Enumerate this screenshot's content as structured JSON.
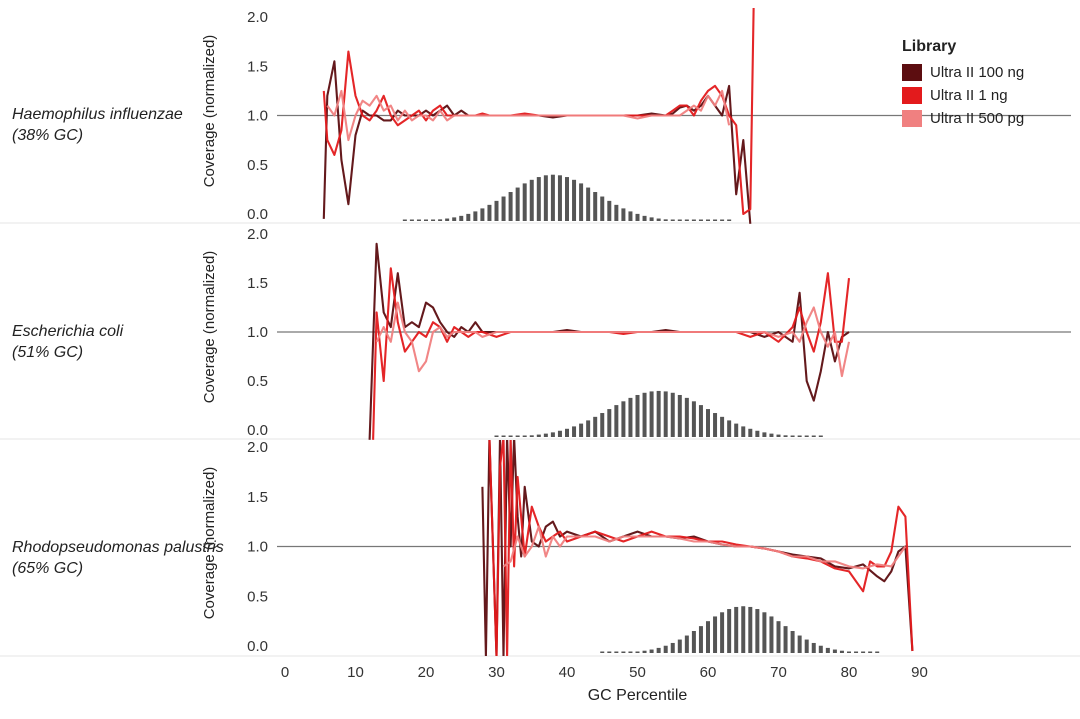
{
  "panels": [
    {
      "organism_name": "Haemophilus influenzae",
      "organism_gc": "(38% GC)"
    },
    {
      "organism_name": "Escherichia coli",
      "organism_gc": "(51% GC)"
    },
    {
      "organism_name": "Rhodopseudomonas palustris",
      "organism_gc": "(65% GC)"
    }
  ],
  "legend": {
    "title": "Library",
    "items": [
      {
        "label": "Ultra II 100 ng",
        "color": "#5c0d10"
      },
      {
        "label": "Ultra II 1 ng",
        "color": "#e31a1c"
      },
      {
        "label": "Ultra II 500 pg",
        "color": "#f08080"
      }
    ]
  },
  "chart_data": {
    "type": "line",
    "xlabel": "GC Percentile",
    "ylabel": "Coverage (normalized)",
    "xlim": [
      0,
      95
    ],
    "ylim": [
      0,
      2
    ],
    "x_ticks": [
      0,
      10,
      20,
      30,
      40,
      50,
      60,
      70,
      80,
      90
    ],
    "y_ticks": [
      "0.0",
      "0.5",
      "1.0",
      "1.5",
      "2.0"
    ],
    "reference_line": 1.0,
    "histogram_color": "#555555",
    "panels": [
      {
        "organism": "Haemophilus influenzae (38% GC)",
        "histogram": {
          "center": 38,
          "sigma": 6.2,
          "peak": 0.47,
          "x_range": [
            17,
            63
          ]
        },
        "series": [
          {
            "name": "Ultra II 100 ng",
            "color": "#5c0d10",
            "x": [
              5.5,
              6,
              7,
              8,
              9,
              10,
              11,
              12,
              13,
              14,
              15,
              16,
              17,
              18,
              19,
              20,
              21,
              22,
              23,
              24,
              25,
              26,
              27,
              28,
              29,
              30,
              32,
              34,
              36,
              38,
              40,
              42,
              44,
              46,
              48,
              50,
              52,
              54,
              55,
              56,
              57,
              58,
              59,
              60,
              61,
              62,
              63,
              64,
              65,
              66
            ],
            "y": [
              -0.05,
              1.2,
              1.55,
              0.55,
              0.1,
              0.8,
              1.05,
              1.0,
              1.0,
              0.95,
              0.95,
              1.05,
              1.0,
              1.0,
              1.0,
              1.05,
              1.0,
              1.05,
              1.1,
              1.0,
              1.05,
              1.0,
              1.0,
              1.0,
              1.0,
              1.0,
              1.0,
              1.0,
              1.0,
              0.98,
              1.0,
              1.0,
              1.0,
              1.0,
              1.0,
              1.0,
              1.02,
              1.0,
              1.02,
              1.08,
              1.1,
              1.05,
              1.1,
              1.2,
              1.1,
              1.0,
              1.3,
              0.2,
              0.75,
              -0.1
            ]
          },
          {
            "name": "Ultra II 1 ng",
            "color": "#e31a1c",
            "x": [
              5.5,
              6,
              7,
              8,
              9,
              10,
              11,
              12,
              13,
              14,
              15,
              16,
              17,
              18,
              19,
              20,
              21,
              22,
              23,
              24,
              25,
              26,
              27,
              28,
              29,
              30,
              32,
              34,
              36,
              38,
              40,
              42,
              44,
              46,
              48,
              50,
              52,
              54,
              55,
              56,
              57,
              58,
              59,
              60,
              61,
              62,
              63,
              64,
              65,
              66,
              66.5
            ],
            "y": [
              1.25,
              0.75,
              0.6,
              0.85,
              1.65,
              1.2,
              1.0,
              0.95,
              1.05,
              1.2,
              1.0,
              0.9,
              0.95,
              1.0,
              1.05,
              0.95,
              1.05,
              1.1,
              1.0,
              1.0,
              1.0,
              1.0,
              1.0,
              1.02,
              1.0,
              1.0,
              1.0,
              1.02,
              1.0,
              1.0,
              1.0,
              1.0,
              1.0,
              1.0,
              1.0,
              1.0,
              1.0,
              1.0,
              1.05,
              1.1,
              1.1,
              1.0,
              1.15,
              1.25,
              1.3,
              1.2,
              1.0,
              0.9,
              0.0,
              0.05,
              2.2
            ]
          },
          {
            "name": "Ultra II 500 pg",
            "color": "#f08080",
            "x": [
              6,
              7,
              8,
              9,
              10,
              11,
              12,
              13,
              14,
              15,
              16,
              17,
              18,
              19,
              20,
              21,
              22,
              23,
              24,
              25,
              26,
              27,
              28,
              29,
              30,
              32,
              34,
              36,
              38,
              40,
              42,
              44,
              46,
              48,
              50,
              52,
              54,
              55,
              56,
              57,
              58,
              59,
              60,
              61,
              62,
              63
            ],
            "y": [
              1.1,
              1.0,
              1.25,
              0.75,
              1.0,
              1.15,
              1.1,
              1.2,
              1.05,
              1.1,
              0.95,
              1.05,
              0.95,
              1.0,
              1.0,
              0.95,
              1.05,
              0.95,
              1.0,
              1.0,
              1.0,
              1.0,
              1.0,
              1.0,
              1.0,
              1.0,
              1.0,
              1.0,
              1.0,
              1.0,
              1.0,
              1.0,
              1.0,
              1.0,
              0.97,
              1.0,
              1.0,
              1.0,
              1.0,
              1.05,
              1.1,
              1.05,
              1.2,
              1.1,
              1.25,
              0.9
            ]
          }
        ]
      },
      {
        "organism": "Escherichia coli (51% GC)",
        "histogram": {
          "center": 53,
          "sigma": 7,
          "peak": 0.47,
          "x_range": [
            30,
            76
          ]
        },
        "series": [
          {
            "name": "Ultra II 100 ng",
            "color": "#5c0d10",
            "x": [
              12,
              13,
              14,
              15,
              16,
              17,
              18,
              19,
              20,
              21,
              22,
              23,
              24,
              25,
              26,
              27,
              28,
              30,
              32,
              34,
              36,
              38,
              40,
              42,
              44,
              46,
              48,
              50,
              52,
              54,
              56,
              58,
              60,
              62,
              64,
              66,
              68,
              70,
              72,
              73,
              74,
              75,
              76,
              77,
              78,
              79,
              80
            ],
            "y": [
              -0.1,
              1.9,
              1.2,
              1.05,
              1.6,
              1.05,
              1.1,
              1.05,
              1.3,
              1.25,
              1.1,
              1.0,
              0.95,
              1.05,
              1.0,
              1.1,
              1.0,
              1.0,
              1.0,
              1.0,
              1.0,
              1.0,
              1.02,
              1.0,
              1.0,
              1.0,
              1.0,
              1.0,
              1.0,
              1.02,
              1.0,
              1.0,
              1.0,
              1.0,
              1.0,
              1.0,
              0.95,
              1.0,
              0.9,
              1.4,
              0.5,
              0.3,
              0.6,
              1.0,
              0.7,
              0.95,
              1.0
            ]
          },
          {
            "name": "Ultra II 1 ng",
            "color": "#e31a1c",
            "x": [
              12.5,
              13,
              14,
              15,
              16,
              17,
              18,
              19,
              20,
              21,
              22,
              23,
              24,
              25,
              26,
              27,
              28,
              30,
              32,
              34,
              36,
              38,
              40,
              42,
              44,
              46,
              48,
              50,
              52,
              54,
              56,
              58,
              60,
              62,
              64,
              66,
              68,
              70,
              72,
              73,
              74,
              75,
              76,
              77,
              78,
              79,
              80
            ],
            "y": [
              -0.1,
              1.2,
              0.5,
              1.65,
              1.1,
              0.8,
              0.9,
              1.0,
              0.95,
              1.1,
              1.05,
              0.9,
              1.05,
              1.0,
              0.95,
              1.0,
              1.0,
              0.95,
              1.0,
              1.0,
              1.0,
              1.0,
              1.0,
              1.0,
              1.0,
              1.0,
              0.98,
              1.0,
              1.0,
              1.0,
              1.0,
              1.0,
              1.0,
              1.0,
              1.0,
              0.95,
              1.0,
              0.9,
              1.05,
              1.25,
              1.0,
              0.8,
              1.1,
              1.6,
              0.9,
              0.9,
              1.55
            ]
          },
          {
            "name": "Ultra II 500 pg",
            "color": "#f08080",
            "x": [
              13,
              14,
              15,
              16,
              17,
              18,
              19,
              20,
              21,
              22,
              23,
              24,
              25,
              26,
              27,
              28,
              30,
              32,
              34,
              36,
              38,
              40,
              42,
              44,
              46,
              48,
              50,
              52,
              54,
              56,
              58,
              60,
              62,
              64,
              66,
              68,
              70,
              72,
              73,
              74,
              75,
              76,
              77,
              78,
              79,
              80
            ],
            "y": [
              0.9,
              1.05,
              0.9,
              1.3,
              1.0,
              0.9,
              0.6,
              0.7,
              1.0,
              1.05,
              0.95,
              1.0,
              1.0,
              1.0,
              1.0,
              0.95,
              1.0,
              1.0,
              1.0,
              1.0,
              1.0,
              1.0,
              1.0,
              1.0,
              1.0,
              1.0,
              1.0,
              1.0,
              1.0,
              1.0,
              1.0,
              1.0,
              1.0,
              1.0,
              1.0,
              1.0,
              0.95,
              1.0,
              0.9,
              1.1,
              1.25,
              1.0,
              0.85,
              1.0,
              0.55,
              0.9
            ]
          }
        ]
      },
      {
        "organism": "Rhodopseudomonas palustris (65% GC)",
        "histogram": {
          "center": 65,
          "sigma": 5.7,
          "peak": 0.47,
          "x_range": [
            45,
            84
          ]
        },
        "series": [
          {
            "name": "Ultra II 100 ng",
            "color": "#5c0d10",
            "x": [
              28,
              28.5,
              29,
              30,
              30.5,
              31,
              31.5,
              32,
              32.5,
              33,
              33.5,
              34,
              35,
              36,
              37,
              38,
              39,
              40,
              42,
              44,
              46,
              48,
              50,
              52,
              54,
              56,
              58,
              60,
              62,
              64,
              66,
              68,
              70,
              72,
              74,
              76,
              78,
              80,
              82,
              84,
              85,
              86,
              87,
              88,
              89
            ],
            "y": [
              1.6,
              -0.1,
              2.1,
              -0.1,
              2.1,
              -0.1,
              2.1,
              1.0,
              2.1,
              1.3,
              0.9,
              1.6,
              1.05,
              1.0,
              1.2,
              1.25,
              1.1,
              1.15,
              1.1,
              1.15,
              1.05,
              1.1,
              1.15,
              1.1,
              1.1,
              1.08,
              1.1,
              1.05,
              1.02,
              1.0,
              1.0,
              0.98,
              0.95,
              0.92,
              0.9,
              0.88,
              0.8,
              0.78,
              0.82,
              0.7,
              0.65,
              0.75,
              0.95,
              1.0,
              -0.05
            ]
          },
          {
            "name": "Ultra II 1 ng",
            "color": "#e31a1c",
            "x": [
              29,
              30,
              30.5,
              31,
              31.5,
              32,
              32.5,
              33,
              34,
              35,
              36,
              37,
              38,
              39,
              40,
              42,
              44,
              46,
              48,
              50,
              52,
              54,
              56,
              58,
              60,
              62,
              64,
              66,
              68,
              70,
              72,
              74,
              76,
              78,
              80,
              82,
              83,
              84,
              85,
              86,
              87,
              88,
              89
            ],
            "y": [
              2.1,
              -0.1,
              1.8,
              2.1,
              -0.1,
              2.1,
              0.8,
              1.7,
              0.9,
              1.4,
              1.2,
              1.05,
              1.1,
              1.15,
              1.05,
              1.1,
              1.15,
              1.1,
              1.05,
              1.1,
              1.15,
              1.1,
              1.1,
              1.08,
              1.05,
              1.05,
              1.02,
              1.0,
              0.98,
              0.95,
              0.9,
              0.88,
              0.85,
              0.78,
              0.75,
              0.55,
              0.85,
              0.8,
              0.8,
              0.95,
              1.4,
              1.3,
              -0.05
            ]
          },
          {
            "name": "Ultra II 500 pg",
            "color": "#f08080",
            "x": [
              31,
              32,
              33,
              34,
              35,
              36,
              37,
              38,
              39,
              40,
              42,
              44,
              46,
              48,
              50,
              52,
              54,
              56,
              58,
              60,
              62,
              64,
              66,
              68,
              70,
              72,
              74,
              76,
              78,
              80,
              82,
              84,
              86,
              88
            ],
            "y": [
              0.8,
              0.85,
              1.1,
              0.9,
              1.0,
              1.2,
              0.9,
              1.1,
              1.0,
              1.1,
              1.1,
              1.1,
              1.05,
              1.1,
              1.1,
              1.1,
              1.1,
              1.08,
              1.05,
              1.05,
              1.02,
              1.0,
              1.0,
              0.98,
              0.95,
              0.9,
              0.9,
              0.85,
              0.85,
              0.8,
              0.78,
              0.82,
              0.8,
              1.0
            ]
          }
        ]
      }
    ]
  }
}
